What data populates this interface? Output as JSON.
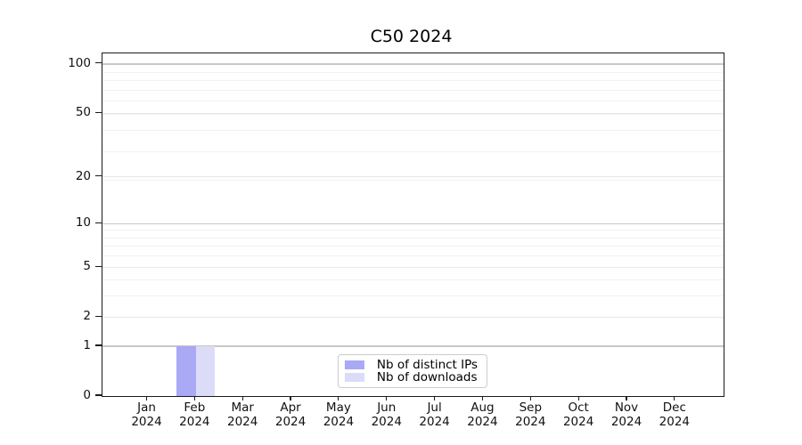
{
  "chart_data": {
    "type": "bar",
    "title": "C50 2024",
    "categories": [
      {
        "line1": "Jan",
        "line2": "2024"
      },
      {
        "line1": "Feb",
        "line2": "2024"
      },
      {
        "line1": "Mar",
        "line2": "2024"
      },
      {
        "line1": "Apr",
        "line2": "2024"
      },
      {
        "line1": "May",
        "line2": "2024"
      },
      {
        "line1": "Jun",
        "line2": "2024"
      },
      {
        "line1": "Jul",
        "line2": "2024"
      },
      {
        "line1": "Aug",
        "line2": "2024"
      },
      {
        "line1": "Sep",
        "line2": "2024"
      },
      {
        "line1": "Oct",
        "line2": "2024"
      },
      {
        "line1": "Nov",
        "line2": "2024"
      },
      {
        "line1": "Dec",
        "line2": "2024"
      }
    ],
    "series": [
      {
        "name": "Nb of distinct IPs",
        "color": "#a9a9f6",
        "values": [
          0,
          1,
          0,
          0,
          0,
          0,
          0,
          0,
          0,
          0,
          0,
          0
        ]
      },
      {
        "name": "Nb of downloads",
        "color": "#dcdcf9",
        "values": [
          0,
          1,
          0,
          0,
          0,
          0,
          0,
          0,
          0,
          0,
          0,
          0
        ]
      }
    ],
    "yscale": "log1p",
    "yticks": [
      0,
      1,
      2,
      5,
      10,
      20,
      50,
      100
    ],
    "ytick_labels": [
      "0",
      "1",
      "2",
      "5",
      "10",
      "20",
      "50",
      "100"
    ],
    "ylim": [
      0,
      116
    ],
    "grid": true,
    "legend_position": "lower center"
  },
  "colors": {
    "grid_major_dark": "#c8c8c8",
    "grid_major_light": "#e8e8e8",
    "grid_minor": "#f2f2f2",
    "frame": "#1b1b1b"
  }
}
